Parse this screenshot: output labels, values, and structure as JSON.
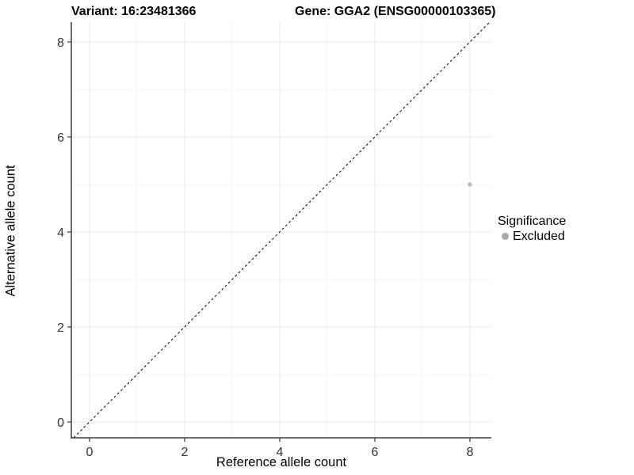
{
  "header": {
    "variant_title": "Variant: 16:23481366",
    "gene_title": "Gene: GGA2 (ENSG00000103365)"
  },
  "chart_data": {
    "type": "scatter",
    "title_left": "Variant: 16:23481366",
    "title_right": "Gene: GGA2 (ENSG00000103365)",
    "xlabel": "Reference allele count",
    "ylabel": "Alternative allele count",
    "xlim": [
      -0.38,
      8.45
    ],
    "ylim": [
      -0.33,
      8.42
    ],
    "x_ticks": [
      0,
      2,
      4,
      6,
      8
    ],
    "y_ticks": [
      0,
      2,
      4,
      6,
      8
    ],
    "x_minor_ticks": [
      1,
      3,
      5,
      7
    ],
    "y_minor_ticks": [
      1,
      3,
      5,
      7
    ],
    "grid": "major and minor gridlines on white panel",
    "points": [
      {
        "x": 8,
        "y": 5,
        "significance": "Excluded"
      }
    ],
    "identity_line": {
      "style": "dashed",
      "equation": "y = x",
      "color": "#000000"
    },
    "legend": {
      "title": "Significance",
      "position": "right",
      "items": [
        {
          "label": "Excluded",
          "color": "#aaaaaa"
        }
      ]
    },
    "colors": {
      "point": "#b9b9b9",
      "grid_major": "#e9e9e9",
      "grid_minor": "#f5f5f5",
      "axis_line": "#3c3c3c",
      "tick_label": "#333333"
    }
  }
}
